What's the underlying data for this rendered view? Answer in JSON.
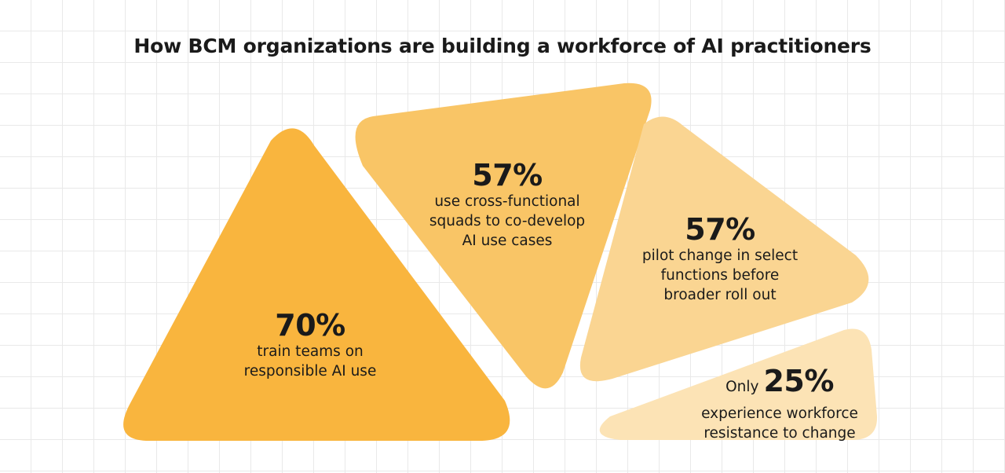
{
  "title": "How BCM organizations are building a workforce of AI practitioners",
  "colors": {
    "shape_1": "#f9b53e",
    "shape_2": "#f9c566",
    "shape_3": "#fad592",
    "shape_4": "#fce3b5"
  },
  "stats": [
    {
      "percent": "70%",
      "description": "train teams on\nresponsible AI use"
    },
    {
      "percent": "57%",
      "description": "use cross-functional\nsquads to co-develop\nAI use cases"
    },
    {
      "percent": "57%",
      "description": "pilot change in select\nfunctions before\nbroader roll out"
    },
    {
      "prefix": "Only",
      "percent": "25%",
      "description": "experience workforce\nresistance to change"
    }
  ]
}
